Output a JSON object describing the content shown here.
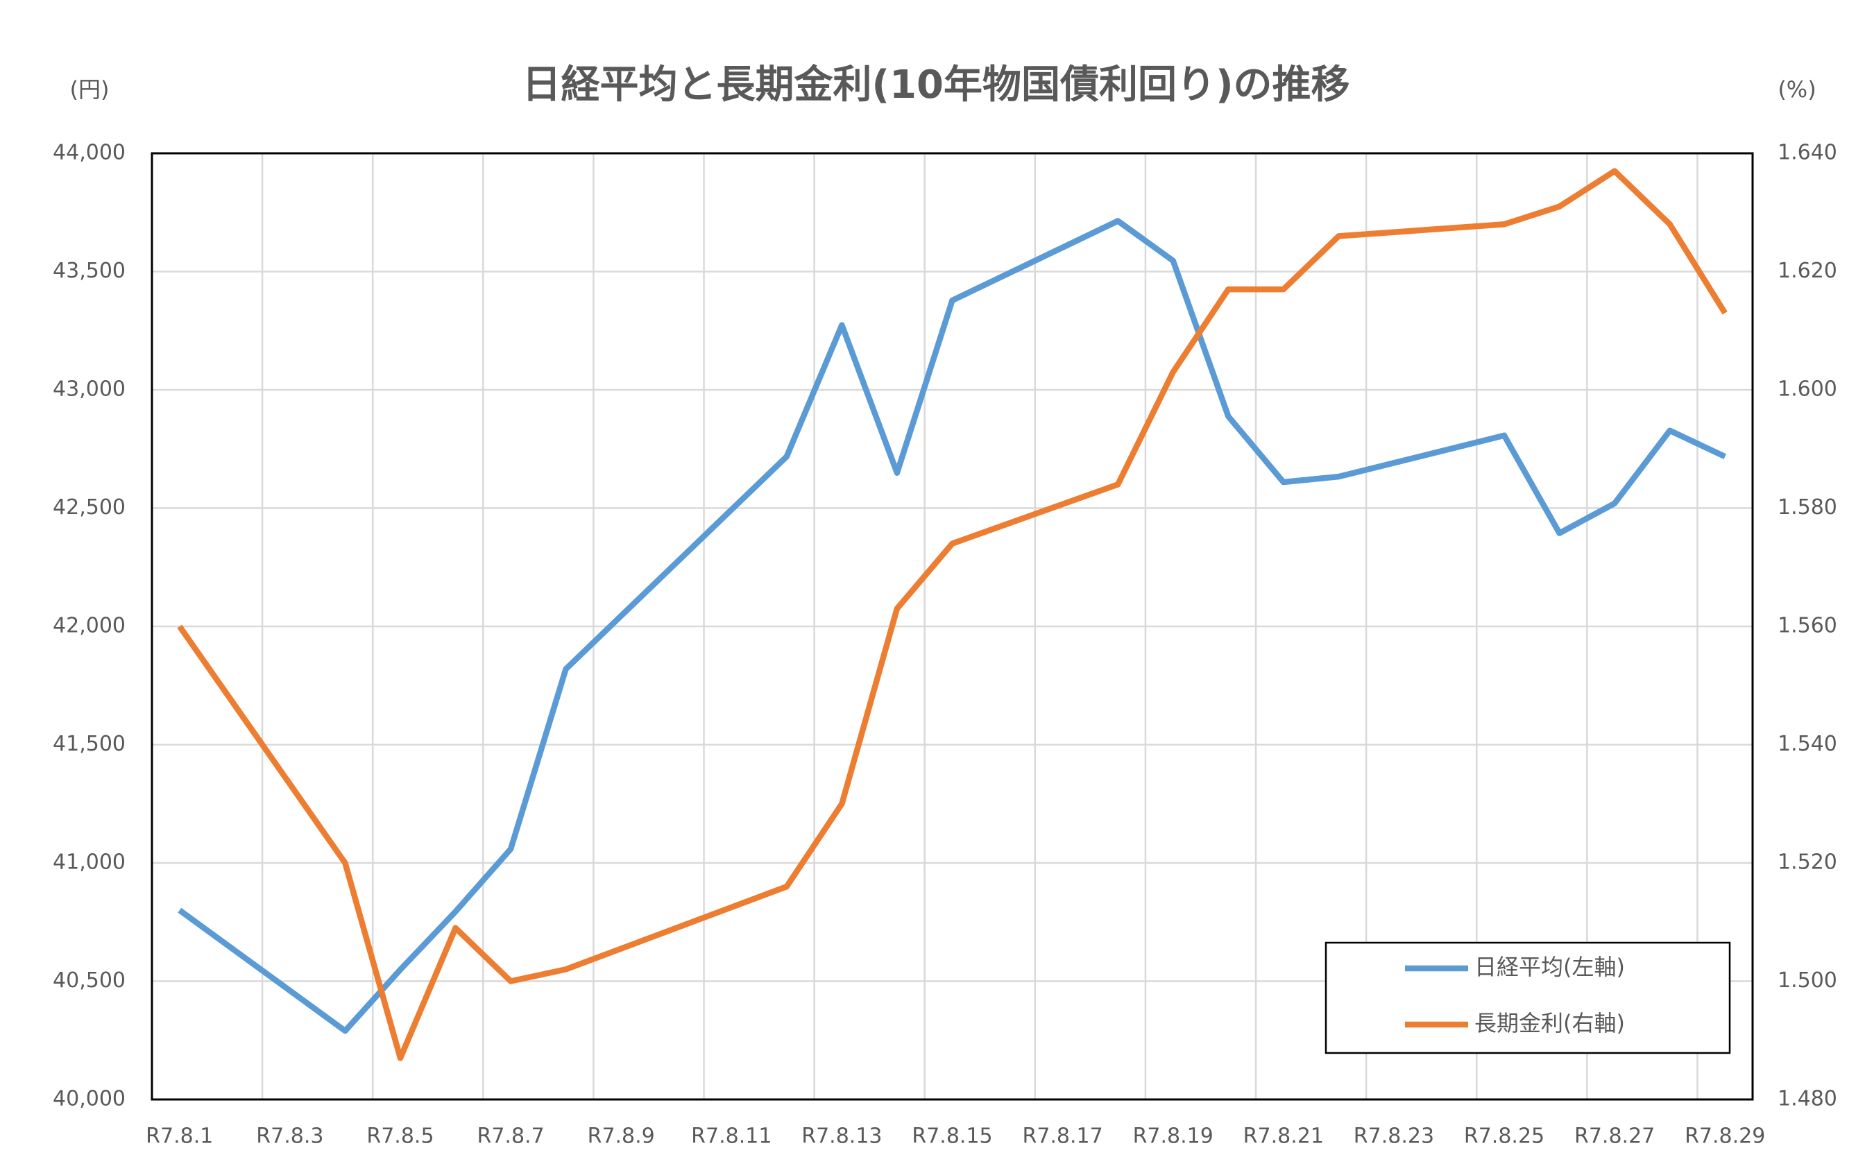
{
  "chart_data": {
    "type": "line",
    "title": "日経平均と長期金利(10年物国債利回り)の推移",
    "y_unit": "(円)",
    "y2_unit": "(%)",
    "x": [
      "R7.8.1",
      "R7.8.4",
      "R7.8.5",
      "R7.8.6",
      "R7.8.7",
      "R7.8.8",
      "R7.8.12",
      "R7.8.13",
      "R7.8.14",
      "R7.8.15",
      "R7.8.18",
      "R7.8.19",
      "R7.8.20",
      "R7.8.21",
      "R7.8.22",
      "R7.8.25",
      "R7.8.26",
      "R7.8.27",
      "R7.8.28",
      "R7.8.29"
    ],
    "xticks": [
      "R7.8.1",
      "R7.8.3",
      "R7.8.5",
      "R7.8.7",
      "R7.8.9",
      "R7.8.11",
      "R7.8.13",
      "R7.8.15",
      "R7.8.17",
      "R7.8.19",
      "R7.8.21",
      "R7.8.23",
      "R7.8.25",
      "R7.8.27",
      "R7.8.29"
    ],
    "series": [
      {
        "name": "日経平均(左軸)",
        "color": "#5b9bd5",
        "axis": "y",
        "values": [
          40800,
          40290,
          40549,
          40794,
          41059,
          41820,
          42718,
          43274,
          42649,
          43378,
          43714,
          43546,
          42888,
          42610,
          42633,
          42807,
          42394,
          42520,
          42828,
          42718
        ]
      },
      {
        "name": "長期金利(右軸)",
        "color": "#ed7d31",
        "axis": "y2",
        "values": [
          1.56,
          1.52,
          1.487,
          1.509,
          1.5,
          1.502,
          1.516,
          1.53,
          1.563,
          1.574,
          1.584,
          1.603,
          1.617,
          1.617,
          1.626,
          1.628,
          1.631,
          1.637,
          1.628,
          1.613
        ]
      }
    ],
    "ylim": [
      40000,
      44000
    ],
    "yticks": [
      {
        "value": 40000,
        "label": "40,000"
      },
      {
        "value": 40500,
        "label": "40,500"
      },
      {
        "value": 41000,
        "label": "41,000"
      },
      {
        "value": 41500,
        "label": "41,500"
      },
      {
        "value": 42000,
        "label": "42,000"
      },
      {
        "value": 42500,
        "label": "42,500"
      },
      {
        "value": 43000,
        "label": "43,000"
      },
      {
        "value": 43500,
        "label": "43,500"
      },
      {
        "value": 44000,
        "label": "44,000"
      }
    ],
    "y2lim": [
      1.48,
      1.64
    ],
    "y2ticks": [
      {
        "value": 1.48,
        "label": "1.480"
      },
      {
        "value": 1.5,
        "label": "1.500"
      },
      {
        "value": 1.52,
        "label": "1.520"
      },
      {
        "value": 1.54,
        "label": "1.540"
      },
      {
        "value": 1.56,
        "label": "1.560"
      },
      {
        "value": 1.58,
        "label": "1.580"
      },
      {
        "value": 1.6,
        "label": "1.600"
      },
      {
        "value": 1.62,
        "label": "1.620"
      },
      {
        "value": 1.64,
        "label": "1.640"
      }
    ],
    "grid": true,
    "legend": "lower right"
  }
}
